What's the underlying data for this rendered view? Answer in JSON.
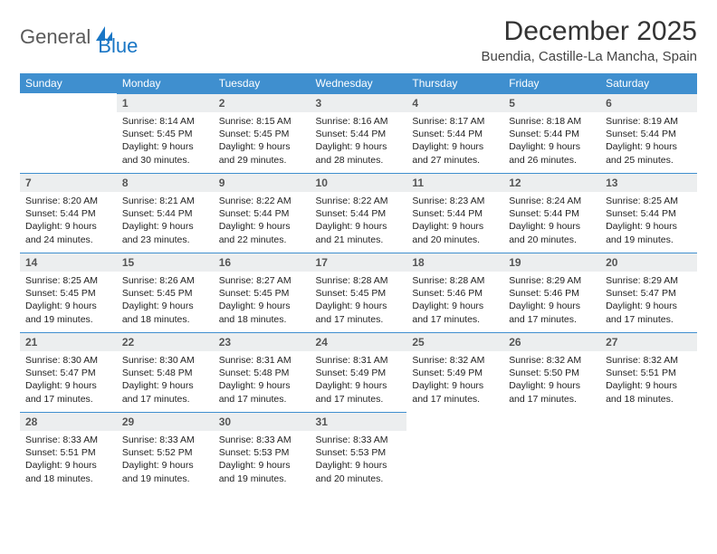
{
  "brand": {
    "part1": "General",
    "part2": "Blue"
  },
  "title": "December 2025",
  "location": "Buendia, Castille-La Mancha, Spain",
  "colors": {
    "header_bg": "#3f8fcf",
    "header_text": "#ffffff",
    "daynum_bg": "#eceeef",
    "border": "#3f8fcf",
    "brand_blue": "#1976c5",
    "brand_gray": "#5a5a5a"
  },
  "weekdays": [
    "Sunday",
    "Monday",
    "Tuesday",
    "Wednesday",
    "Thursday",
    "Friday",
    "Saturday"
  ],
  "weeks": [
    [
      null,
      {
        "n": "1",
        "sr": "Sunrise: 8:14 AM",
        "ss": "Sunset: 5:45 PM",
        "dl": "Daylight: 9 hours and 30 minutes."
      },
      {
        "n": "2",
        "sr": "Sunrise: 8:15 AM",
        "ss": "Sunset: 5:45 PM",
        "dl": "Daylight: 9 hours and 29 minutes."
      },
      {
        "n": "3",
        "sr": "Sunrise: 8:16 AM",
        "ss": "Sunset: 5:44 PM",
        "dl": "Daylight: 9 hours and 28 minutes."
      },
      {
        "n": "4",
        "sr": "Sunrise: 8:17 AM",
        "ss": "Sunset: 5:44 PM",
        "dl": "Daylight: 9 hours and 27 minutes."
      },
      {
        "n": "5",
        "sr": "Sunrise: 8:18 AM",
        "ss": "Sunset: 5:44 PM",
        "dl": "Daylight: 9 hours and 26 minutes."
      },
      {
        "n": "6",
        "sr": "Sunrise: 8:19 AM",
        "ss": "Sunset: 5:44 PM",
        "dl": "Daylight: 9 hours and 25 minutes."
      }
    ],
    [
      {
        "n": "7",
        "sr": "Sunrise: 8:20 AM",
        "ss": "Sunset: 5:44 PM",
        "dl": "Daylight: 9 hours and 24 minutes."
      },
      {
        "n": "8",
        "sr": "Sunrise: 8:21 AM",
        "ss": "Sunset: 5:44 PM",
        "dl": "Daylight: 9 hours and 23 minutes."
      },
      {
        "n": "9",
        "sr": "Sunrise: 8:22 AM",
        "ss": "Sunset: 5:44 PM",
        "dl": "Daylight: 9 hours and 22 minutes."
      },
      {
        "n": "10",
        "sr": "Sunrise: 8:22 AM",
        "ss": "Sunset: 5:44 PM",
        "dl": "Daylight: 9 hours and 21 minutes."
      },
      {
        "n": "11",
        "sr": "Sunrise: 8:23 AM",
        "ss": "Sunset: 5:44 PM",
        "dl": "Daylight: 9 hours and 20 minutes."
      },
      {
        "n": "12",
        "sr": "Sunrise: 8:24 AM",
        "ss": "Sunset: 5:44 PM",
        "dl": "Daylight: 9 hours and 20 minutes."
      },
      {
        "n": "13",
        "sr": "Sunrise: 8:25 AM",
        "ss": "Sunset: 5:44 PM",
        "dl": "Daylight: 9 hours and 19 minutes."
      }
    ],
    [
      {
        "n": "14",
        "sr": "Sunrise: 8:25 AM",
        "ss": "Sunset: 5:45 PM",
        "dl": "Daylight: 9 hours and 19 minutes."
      },
      {
        "n": "15",
        "sr": "Sunrise: 8:26 AM",
        "ss": "Sunset: 5:45 PM",
        "dl": "Daylight: 9 hours and 18 minutes."
      },
      {
        "n": "16",
        "sr": "Sunrise: 8:27 AM",
        "ss": "Sunset: 5:45 PM",
        "dl": "Daylight: 9 hours and 18 minutes."
      },
      {
        "n": "17",
        "sr": "Sunrise: 8:28 AM",
        "ss": "Sunset: 5:45 PM",
        "dl": "Daylight: 9 hours and 17 minutes."
      },
      {
        "n": "18",
        "sr": "Sunrise: 8:28 AM",
        "ss": "Sunset: 5:46 PM",
        "dl": "Daylight: 9 hours and 17 minutes."
      },
      {
        "n": "19",
        "sr": "Sunrise: 8:29 AM",
        "ss": "Sunset: 5:46 PM",
        "dl": "Daylight: 9 hours and 17 minutes."
      },
      {
        "n": "20",
        "sr": "Sunrise: 8:29 AM",
        "ss": "Sunset: 5:47 PM",
        "dl": "Daylight: 9 hours and 17 minutes."
      }
    ],
    [
      {
        "n": "21",
        "sr": "Sunrise: 8:30 AM",
        "ss": "Sunset: 5:47 PM",
        "dl": "Daylight: 9 hours and 17 minutes."
      },
      {
        "n": "22",
        "sr": "Sunrise: 8:30 AM",
        "ss": "Sunset: 5:48 PM",
        "dl": "Daylight: 9 hours and 17 minutes."
      },
      {
        "n": "23",
        "sr": "Sunrise: 8:31 AM",
        "ss": "Sunset: 5:48 PM",
        "dl": "Daylight: 9 hours and 17 minutes."
      },
      {
        "n": "24",
        "sr": "Sunrise: 8:31 AM",
        "ss": "Sunset: 5:49 PM",
        "dl": "Daylight: 9 hours and 17 minutes."
      },
      {
        "n": "25",
        "sr": "Sunrise: 8:32 AM",
        "ss": "Sunset: 5:49 PM",
        "dl": "Daylight: 9 hours and 17 minutes."
      },
      {
        "n": "26",
        "sr": "Sunrise: 8:32 AM",
        "ss": "Sunset: 5:50 PM",
        "dl": "Daylight: 9 hours and 17 minutes."
      },
      {
        "n": "27",
        "sr": "Sunrise: 8:32 AM",
        "ss": "Sunset: 5:51 PM",
        "dl": "Daylight: 9 hours and 18 minutes."
      }
    ],
    [
      {
        "n": "28",
        "sr": "Sunrise: 8:33 AM",
        "ss": "Sunset: 5:51 PM",
        "dl": "Daylight: 9 hours and 18 minutes."
      },
      {
        "n": "29",
        "sr": "Sunrise: 8:33 AM",
        "ss": "Sunset: 5:52 PM",
        "dl": "Daylight: 9 hours and 19 minutes."
      },
      {
        "n": "30",
        "sr": "Sunrise: 8:33 AM",
        "ss": "Sunset: 5:53 PM",
        "dl": "Daylight: 9 hours and 19 minutes."
      },
      {
        "n": "31",
        "sr": "Sunrise: 8:33 AM",
        "ss": "Sunset: 5:53 PM",
        "dl": "Daylight: 9 hours and 20 minutes."
      },
      null,
      null,
      null
    ]
  ]
}
